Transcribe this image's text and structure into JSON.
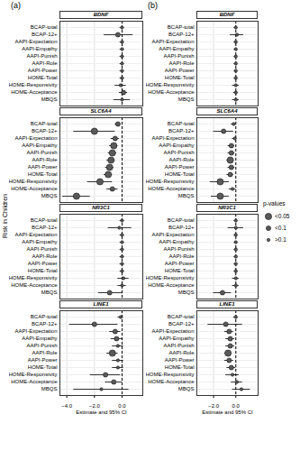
{
  "chart_data": [
    {
      "type": "forest",
      "title": "(a)",
      "x_label": "Estimate and 95% CI",
      "y_label": "Risk in Children",
      "xlim": [
        -4.5,
        1.5
      ],
      "xticks": [
        -4,
        -2,
        0
      ],
      "grid": true,
      "reference_line": 0,
      "categories": [
        "BCAP-total",
        "BCAP-12+",
        "AAPI-Expectation",
        "AAPI-Empathy",
        "AAPI-Punish",
        "AAPI-Role",
        "AAPI-Power",
        "HOME-Total",
        "HOME-Responsivity",
        "HOME-Acceptance",
        "MBQS"
      ],
      "panels": [
        {
          "name": "BDNF",
          "estimates": [
            0,
            -0.3,
            0,
            0,
            0,
            0,
            0,
            0,
            -0.1,
            0.1,
            0
          ],
          "ci_low": [
            -0.15,
            -1.3,
            -0.15,
            -0.15,
            -0.15,
            -0.15,
            -0.15,
            -0.15,
            -0.5,
            -0.2,
            -0.6
          ],
          "ci_high": [
            0.15,
            0.8,
            0.15,
            0.15,
            0.15,
            0.15,
            0.15,
            0.15,
            0.3,
            0.4,
            0.6
          ],
          "p_values": [
            ">0.1",
            "<0.1",
            ">0.1",
            ">0.1",
            ">0.1",
            ">0.1",
            ">0.1",
            ">0.1",
            ">0.1",
            "<0.1",
            ">0.1"
          ]
        },
        {
          "name": "SLC6A4",
          "estimates": [
            -0.3,
            -2.0,
            -0.5,
            -0.6,
            -0.7,
            -0.8,
            -0.9,
            -1.0,
            -1.6,
            -0.7,
            -3.3
          ],
          "ci_low": [
            -0.5,
            -3.5,
            -0.8,
            -0.9,
            -1.0,
            -1.1,
            -1.2,
            -1.3,
            -2.5,
            -1.1,
            -4.3
          ],
          "ci_high": [
            -0.1,
            -0.5,
            -0.2,
            -0.3,
            -0.4,
            -0.5,
            -0.6,
            -0.7,
            -0.7,
            -0.3,
            -2.3
          ],
          "p_values": [
            "<0.1",
            "<0.05",
            "<0.1",
            "<0.05",
            "<0.05",
            "<0.05",
            "<0.05",
            "<0.05",
            "<0.05",
            "<0.1",
            "<0.05"
          ]
        },
        {
          "name": "NR3C1",
          "estimates": [
            0,
            -0.2,
            0,
            0,
            0,
            0,
            0,
            0,
            0.1,
            0,
            -0.9
          ],
          "ci_low": [
            -0.15,
            -1.0,
            -0.15,
            -0.15,
            -0.15,
            -0.15,
            -0.15,
            -0.15,
            -0.3,
            -0.3,
            -1.7
          ],
          "ci_high": [
            0.15,
            0.7,
            0.15,
            0.15,
            0.15,
            0.15,
            0.15,
            0.15,
            0.5,
            0.3,
            0
          ],
          "p_values": [
            ">0.1",
            ">0.1",
            ">0.1",
            ">0.1",
            ">0.1",
            ">0.1",
            ">0.1",
            ">0.1",
            ">0.1",
            ">0.1",
            "<0.1"
          ]
        },
        {
          "name": "LINE1",
          "estimates": [
            -0.1,
            -2.0,
            -0.5,
            -0.4,
            -0.3,
            -0.7,
            -0.3,
            -0.3,
            -1.2,
            -0.6,
            -1.5
          ],
          "ci_low": [
            -0.3,
            -3.8,
            -0.9,
            -0.8,
            -0.7,
            -1.1,
            -0.7,
            -0.7,
            -2.3,
            -1.2,
            -3.5
          ],
          "ci_high": [
            0.1,
            -0.3,
            -0.1,
            0,
            0.1,
            -0.3,
            0.1,
            0.1,
            -0.1,
            0,
            0.5
          ],
          "p_values": [
            ">0.1",
            "<0.1",
            "<0.1",
            "<0.1",
            ">0.1",
            "<0.05",
            ">0.1",
            ">0.1",
            "<0.1",
            "<0.1",
            ">0.1"
          ]
        }
      ]
    },
    {
      "type": "forest",
      "title": "(b)",
      "x_label": "Estimate and 95% CI",
      "xlim": [
        -3.5,
        2
      ],
      "xticks": [
        -2,
        0
      ],
      "grid": true,
      "reference_line": 0,
      "categories": [
        "BCAP-total",
        "BCAP-12+",
        "AAPI-Expectation",
        "AAPI-Empathy",
        "AAPI-Punish",
        "AAPI-Role",
        "AAPI-Power",
        "HOME-Total",
        "HOME-Responsivity",
        "HOME-Acceptance",
        "MBQS"
      ],
      "size_legend": {
        "title": "p-values",
        "labels": [
          "<0.05",
          "<0.1",
          ">0.1"
        ]
      },
      "panels": [
        {
          "name": "BDNF",
          "estimates": [
            0,
            0.1,
            0,
            0,
            0,
            0,
            0,
            0,
            0,
            0,
            0
          ],
          "ci_low": [
            -0.15,
            -0.5,
            -0.15,
            -0.15,
            -0.15,
            -0.15,
            -0.15,
            -0.15,
            -0.3,
            -0.2,
            -0.3
          ],
          "ci_high": [
            0.15,
            0.7,
            0.15,
            0.15,
            0.15,
            0.15,
            0.15,
            0.15,
            0.3,
            0.2,
            0.3
          ],
          "p_values": [
            ">0.1",
            ">0.1",
            ">0.1",
            ">0.1",
            ">0.1",
            ">0.1",
            ">0.1",
            ">0.1",
            ">0.1",
            ">0.1",
            ">0.1"
          ]
        },
        {
          "name": "SLC6A4",
          "estimates": [
            -0.2,
            -1.1,
            -0.1,
            -0.4,
            -0.4,
            -0.5,
            -0.4,
            -0.5,
            -1.4,
            -0.3,
            -1.4
          ],
          "ci_low": [
            -0.4,
            -2.0,
            -0.3,
            -0.7,
            -0.7,
            -0.8,
            -0.7,
            -0.8,
            -2.3,
            -0.6,
            -2.2
          ],
          "ci_high": [
            0,
            -0.2,
            0.1,
            -0.1,
            -0.1,
            -0.2,
            -0.1,
            -0.2,
            -0.6,
            0,
            -0.6
          ],
          "p_values": [
            ">0.1",
            "<0.1",
            ">0.1",
            "<0.1",
            "<0.1",
            "<0.05",
            "<0.1",
            "<0.1",
            "<0.05",
            ">0.1",
            "<0.05"
          ]
        },
        {
          "name": "NR3C1",
          "estimates": [
            0,
            0,
            0,
            0,
            0,
            0,
            0,
            0,
            0,
            0,
            -1.2
          ],
          "ci_low": [
            -0.15,
            -0.7,
            -0.15,
            -0.15,
            -0.15,
            -0.15,
            -0.15,
            -0.15,
            -0.3,
            -0.3,
            -2.0
          ],
          "ci_high": [
            0.15,
            0.7,
            0.15,
            0.15,
            0.15,
            0.15,
            0.15,
            0.15,
            0.3,
            0.3,
            -0.4
          ],
          "p_values": [
            ">0.1",
            ">0.1",
            ">0.1",
            ">0.1",
            ">0.1",
            ">0.1",
            ">0.1",
            ">0.1",
            ">0.1",
            ">0.1",
            "<0.1"
          ]
        },
        {
          "name": "LINE1",
          "estimates": [
            0,
            -0.9,
            -0.6,
            -0.5,
            -0.5,
            -0.7,
            -0.6,
            -0.4,
            -0.3,
            0.1,
            0.5
          ],
          "ci_low": [
            -0.2,
            -2.5,
            -1.0,
            -0.9,
            -0.9,
            -1.0,
            -1.0,
            -0.8,
            -0.9,
            -0.4,
            -0.3
          ],
          "ci_high": [
            0.2,
            0.6,
            -0.2,
            -0.1,
            -0.1,
            -0.4,
            -0.2,
            0,
            0.3,
            0.6,
            1.3
          ],
          "p_values": [
            ">0.1",
            "<0.1",
            "<0.1",
            "<0.1",
            "<0.1",
            "<0.05",
            "<0.1",
            "<0.1",
            ">0.1",
            ">0.1",
            ">0.1"
          ]
        }
      ]
    }
  ]
}
